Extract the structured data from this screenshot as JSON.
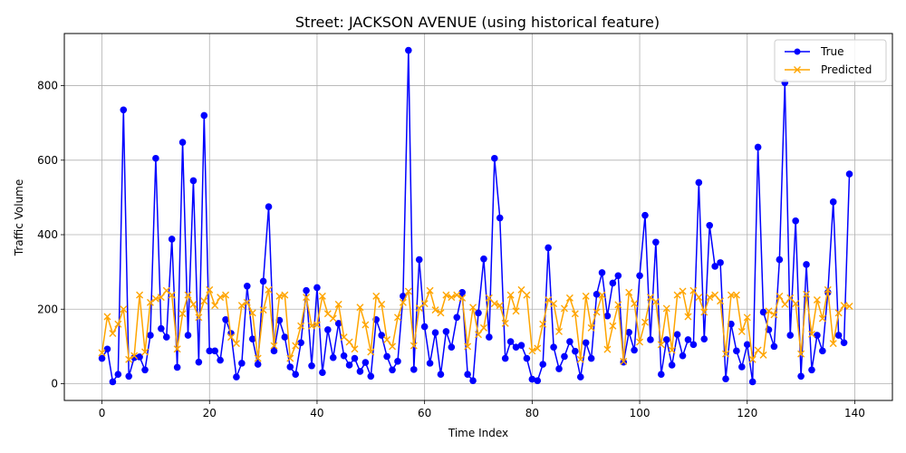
{
  "chart_data": {
    "type": "line",
    "title": "Street: JACKSON AVENUE (using historical feature)",
    "xlabel": "Time Index",
    "ylabel": "Traffic Volume",
    "xlim": [
      -7,
      147
    ],
    "ylim": [
      -45,
      940
    ],
    "xticks": [
      0,
      20,
      40,
      60,
      80,
      100,
      120,
      140
    ],
    "yticks": [
      0,
      200,
      400,
      600,
      800
    ],
    "grid": true,
    "legend_position": "top-right",
    "x": [
      0,
      1,
      2,
      3,
      4,
      5,
      6,
      7,
      8,
      9,
      10,
      11,
      12,
      13,
      14,
      15,
      16,
      17,
      18,
      19,
      20,
      21,
      22,
      23,
      24,
      25,
      26,
      27,
      28,
      29,
      30,
      31,
      32,
      33,
      34,
      35,
      36,
      37,
      38,
      39,
      40,
      41,
      42,
      43,
      44,
      45,
      46,
      47,
      48,
      49,
      50,
      51,
      52,
      53,
      54,
      55,
      56,
      57,
      58,
      59,
      60,
      61,
      62,
      63,
      64,
      65,
      66,
      67,
      68,
      69,
      70,
      71,
      72,
      73,
      74,
      75,
      76,
      77,
      78,
      79,
      80,
      81,
      82,
      83,
      84,
      85,
      86,
      87,
      88,
      89,
      90,
      91,
      92,
      93,
      94,
      95,
      96,
      97,
      98,
      99,
      100,
      101,
      102,
      103,
      104,
      105,
      106,
      107,
      108,
      109,
      110,
      111,
      112,
      113,
      114,
      115,
      116,
      117,
      118,
      119,
      120,
      121,
      122,
      123,
      124,
      125,
      126,
      127,
      128,
      129,
      130,
      131,
      132,
      133,
      134,
      135,
      136,
      137,
      138,
      139
    ],
    "series": [
      {
        "name": "True",
        "color": "#0000ff",
        "marker": "circle",
        "values": [
          68,
          93,
          5,
          25,
          735,
          20,
          70,
          72,
          37,
          130,
          605,
          148,
          125,
          388,
          44,
          648,
          130,
          545,
          58,
          720,
          88,
          88,
          63,
          172,
          135,
          18,
          55,
          262,
          120,
          52,
          275,
          475,
          88,
          170,
          125,
          45,
          25,
          110,
          250,
          48,
          258,
          30,
          145,
          70,
          162,
          75,
          50,
          68,
          33,
          57,
          20,
          172,
          130,
          73,
          37,
          60,
          235,
          895,
          38,
          333,
          153,
          55,
          137,
          25,
          140,
          98,
          178,
          245,
          25,
          8,
          190,
          335,
          125,
          605,
          445,
          68,
          113,
          98,
          103,
          68,
          12,
          8,
          52,
          365,
          98,
          40,
          73,
          113,
          87,
          18,
          110,
          68,
          240,
          298,
          182,
          270,
          290,
          58,
          138,
          90,
          290,
          452,
          118,
          380,
          25,
          118,
          50,
          132,
          75,
          118,
          105,
          540,
          120,
          425,
          315,
          325,
          13,
          160,
          88,
          45,
          105,
          5,
          635,
          192,
          145,
          100,
          333,
          808,
          130,
          437,
          20,
          320,
          37,
          130,
          88,
          245,
          488,
          130,
          110,
          563
        ]
      },
      {
        "name": "Predicted",
        "color": "#ffa500",
        "marker": "x",
        "values": [
          83,
          180,
          135,
          160,
          200,
          65,
          75,
          238,
          85,
          218,
          228,
          232,
          250,
          238,
          93,
          188,
          238,
          213,
          178,
          222,
          252,
          210,
          232,
          238,
          125,
          108,
          210,
          218,
          190,
          68,
          198,
          252,
          102,
          235,
          238,
          68,
          102,
          155,
          232,
          155,
          158,
          235,
          188,
          175,
          213,
          125,
          112,
          93,
          205,
          158,
          85,
          235,
          213,
          118,
          100,
          178,
          218,
          248,
          102,
          203,
          215,
          250,
          198,
          190,
          238,
          232,
          238,
          230,
          100,
          205,
          132,
          150,
          230,
          215,
          210,
          162,
          238,
          195,
          252,
          238,
          88,
          95,
          160,
          225,
          215,
          140,
          202,
          230,
          188,
          65,
          235,
          150,
          192,
          238,
          92,
          155,
          212,
          60,
          245,
          215,
          112,
          165,
          232,
          220,
          105,
          202,
          90,
          238,
          248,
          180,
          250,
          232,
          192,
          232,
          238,
          222,
          80,
          238,
          238,
          140,
          178,
          65,
          90,
          77,
          195,
          185,
          235,
          213,
          230,
          215,
          80,
          240,
          133,
          225,
          175,
          252,
          108,
          190,
          210,
          208
        ]
      }
    ]
  }
}
